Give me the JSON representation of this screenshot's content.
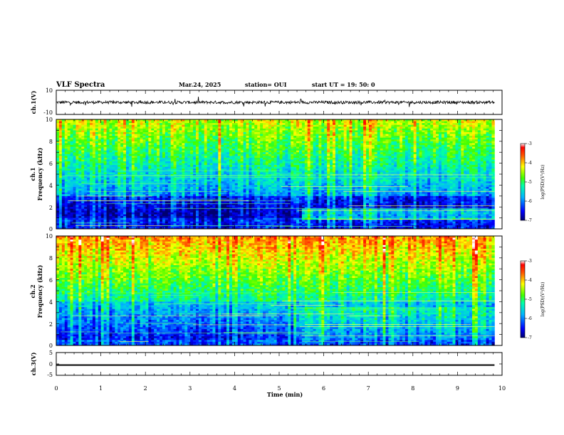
{
  "header": {
    "title": "VLF Spectra",
    "date": "Mar.24, 2025",
    "station": "station= OUI",
    "start": "start  UT  =   19: 50: 0"
  },
  "chart_data": [
    {
      "type": "line",
      "panel": "ch1-waveform",
      "ylabel": "ch.1(V)",
      "ylim": [
        -10,
        10
      ],
      "yticks": [
        "10",
        "-10"
      ],
      "description_values": {
        "baseline": 0,
        "typical_amplitude": 1.2,
        "spike_amplitude": 4
      }
    },
    {
      "type": "heatmap",
      "panel": "ch1-spectrogram",
      "ylabel": "ch.1\nFrequency (kHz)",
      "ylabel_lines": [
        "ch.1",
        "Frequency (kHz)"
      ],
      "xlim": [
        0,
        10
      ],
      "ylim": [
        0,
        10
      ],
      "yticks": [
        "0",
        "2",
        "4",
        "6",
        "8",
        "10"
      ],
      "data_end_min": 9.83,
      "colorbar": {
        "label": "log(PSD)(V²/Hz)",
        "range": [
          -7,
          -3
        ],
        "ticks": [
          "-3",
          "-4",
          "-5",
          "-6",
          "-7"
        ]
      }
    },
    {
      "type": "heatmap",
      "panel": "ch2-spectrogram",
      "ylabel": "ch.2\nFrequency (kHz)",
      "ylabel_lines": [
        "ch.2",
        "Frequency (kHz)"
      ],
      "xlim": [
        0,
        10
      ],
      "ylim": [
        0,
        10
      ],
      "yticks": [
        "0",
        "2",
        "4",
        "6",
        "8",
        "10"
      ],
      "data_end_min": 9.83,
      "colorbar": {
        "label": "log(PSD)(V²/Hz)",
        "range": [
          -7,
          -3
        ],
        "ticks": [
          "-3",
          "-4",
          "-5",
          "-6",
          "-7"
        ]
      }
    },
    {
      "type": "line",
      "panel": "ch3-waveform",
      "ylabel": "ch.3(V)",
      "ylim": [
        -5,
        5
      ],
      "yticks": [
        "5",
        "0",
        "-5"
      ],
      "description_values": {
        "baseline": -0.5,
        "typical_amplitude": 0.3
      }
    }
  ],
  "xaxis": {
    "label": "Time (min)",
    "ticks": [
      "0",
      "1",
      "2",
      "3",
      "4",
      "5",
      "6",
      "7",
      "8",
      "9",
      "10"
    ],
    "range": [
      0,
      10
    ]
  },
  "colors": {
    "jet_low": "#00007f",
    "jet_mid": "#00ff66",
    "jet_high": "#ff0000"
  }
}
